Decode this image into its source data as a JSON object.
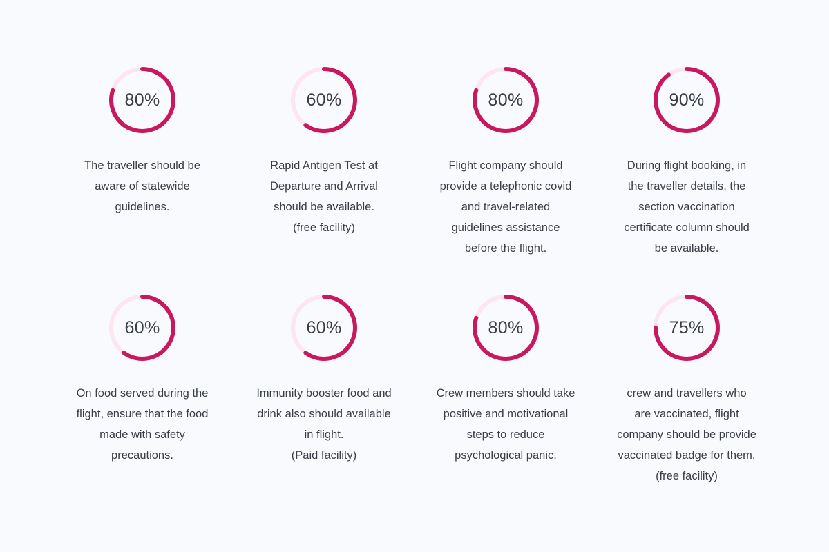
{
  "colors": {
    "background": "#f8fafe",
    "ring_fill": "#c8185f",
    "ring_track": "#fde6ef",
    "text": "#3a3d46"
  },
  "cards": [
    {
      "percent_label": "80%",
      "percent": 80,
      "text": "The traveller should be\naware of statewide\nguidelines."
    },
    {
      "percent_label": "60%",
      "percent": 60,
      "text": "Rapid Antigen Test at\nDeparture and Arrival\nshould be available.\n(free facility)"
    },
    {
      "percent_label": "80%",
      "percent": 80,
      "text": "Flight company should\nprovide a telephonic covid\nand travel-related\nguidelines assistance\nbefore the flight."
    },
    {
      "percent_label": "90%",
      "percent": 90,
      "text": "During flight booking, in\nthe traveller details, the\nsection vaccination\ncertificate column should\nbe available."
    },
    {
      "percent_label": "60%",
      "percent": 60,
      "text": "On food served during the\nflight, ensure that  the food\nmade with safety\nprecautions."
    },
    {
      "percent_label": "60%",
      "percent": 60,
      "text": "Immunity booster food and\ndrink also should available\nin flight.\n(Paid facility)"
    },
    {
      "percent_label": "80%",
      "percent": 80,
      "text": "Crew members should take\npositive and motivational\nsteps to reduce\npsychological panic."
    },
    {
      "percent_label": "75%",
      "percent": 75,
      "text": "crew and travellers who\nare vaccinated, flight\ncompany should be provide\nvaccinated badge for them.\n(free facility)"
    }
  ]
}
